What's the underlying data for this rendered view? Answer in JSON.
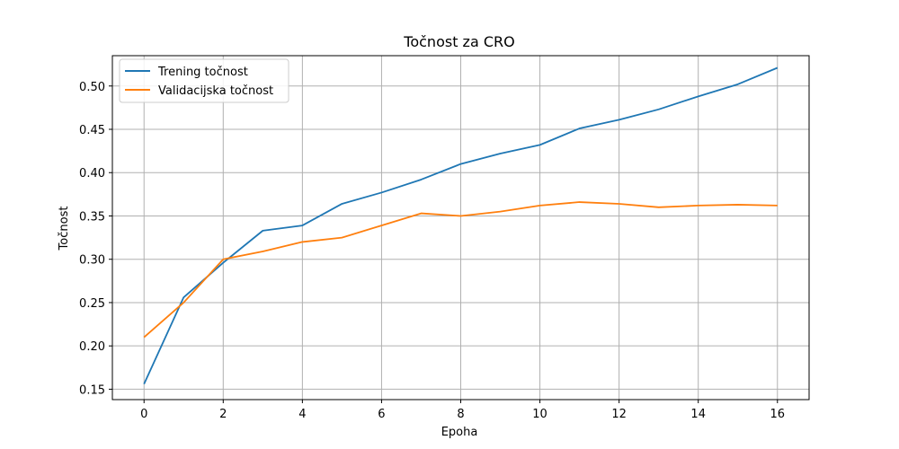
{
  "chart_data": {
    "type": "line",
    "title": "Točnost za CRO",
    "xlabel": "Epoha",
    "ylabel": "Točnost",
    "x": [
      0,
      1,
      2,
      3,
      4,
      5,
      6,
      7,
      8,
      9,
      10,
      11,
      12,
      13,
      14,
      15,
      16
    ],
    "series": [
      {
        "name": "Trening točnost",
        "color": "#1f77b4",
        "values": [
          0.156,
          0.256,
          0.296,
          0.333,
          0.339,
          0.364,
          0.377,
          0.392,
          0.41,
          0.422,
          0.432,
          0.451,
          0.461,
          0.473,
          0.488,
          0.502,
          0.521
        ]
      },
      {
        "name": "Validacijska točnost",
        "color": "#ff7f0e",
        "values": [
          0.21,
          0.25,
          0.3,
          0.309,
          0.32,
          0.325,
          0.339,
          0.353,
          0.35,
          0.355,
          0.362,
          0.366,
          0.364,
          0.36,
          0.362,
          0.363,
          0.362
        ]
      }
    ],
    "xlim": [
      -0.8,
      16.8
    ],
    "ylim": [
      0.138,
      0.535
    ],
    "xticks": [
      0,
      2,
      4,
      6,
      8,
      10,
      12,
      14,
      16
    ],
    "yticks": [
      "0.15",
      "0.20",
      "0.25",
      "0.30",
      "0.35",
      "0.40",
      "0.45",
      "0.50"
    ],
    "grid": true,
    "legend_position": "top-left"
  }
}
